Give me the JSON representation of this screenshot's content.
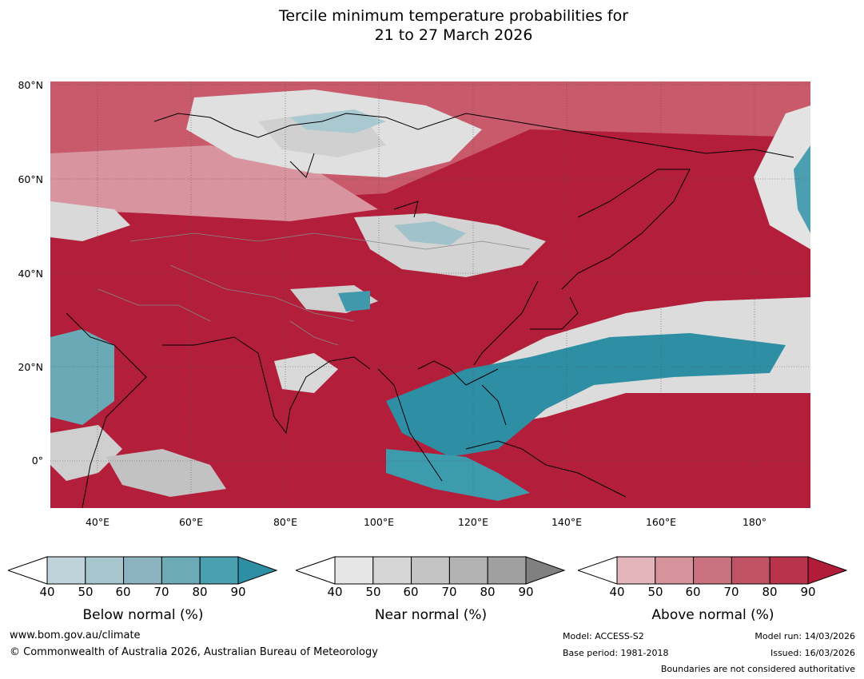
{
  "title_line1": "Tercile minimum temperature probabilities for",
  "title_line2": "21 to 27 March 2026",
  "lat_labels": [
    "80°N",
    "60°N",
    "40°N",
    "20°N",
    "0°"
  ],
  "lon_labels": [
    "40°E",
    "60°E",
    "80°E",
    "100°E",
    "120°E",
    "140°E",
    "160°E",
    "180°"
  ],
  "legends": [
    {
      "title": "Below normal (%)",
      "ticks": [
        "40",
        "50",
        "60",
        "70",
        "80",
        "90"
      ],
      "colors": [
        "#ffffff",
        "#bfd3da",
        "#a7c5cc",
        "#8bb4c0",
        "#6caab6",
        "#4a9fb0",
        "#2e8ea4"
      ]
    },
    {
      "title": "Near normal (%)",
      "ticks": [
        "40",
        "50",
        "60",
        "70",
        "80",
        "90"
      ],
      "colors": [
        "#ffffff",
        "#e6e6e6",
        "#d6d6d6",
        "#c4c4c4",
        "#b3b3b3",
        "#a0a0a0",
        "#808080"
      ]
    },
    {
      "title": "Above normal (%)",
      "ticks": [
        "40",
        "50",
        "60",
        "70",
        "80",
        "90"
      ],
      "colors": [
        "#ffffff",
        "#e3b6bc",
        "#d6939c",
        "#ca727f",
        "#c05265",
        "#b9334c",
        "#b11c38"
      ]
    }
  ],
  "footer": {
    "url": "www.bom.gov.au/climate",
    "copyright": "© Commonwealth of Australia 2026, Australian Bureau of Meteorology",
    "model": "Model: ACCESS-S2",
    "base_period": "Base period: 1981-2018",
    "model_run": "Model run: 14/03/2026",
    "issued": "Issued: 16/03/2026",
    "disclaimer": "Boundaries are not considered authoritative"
  }
}
